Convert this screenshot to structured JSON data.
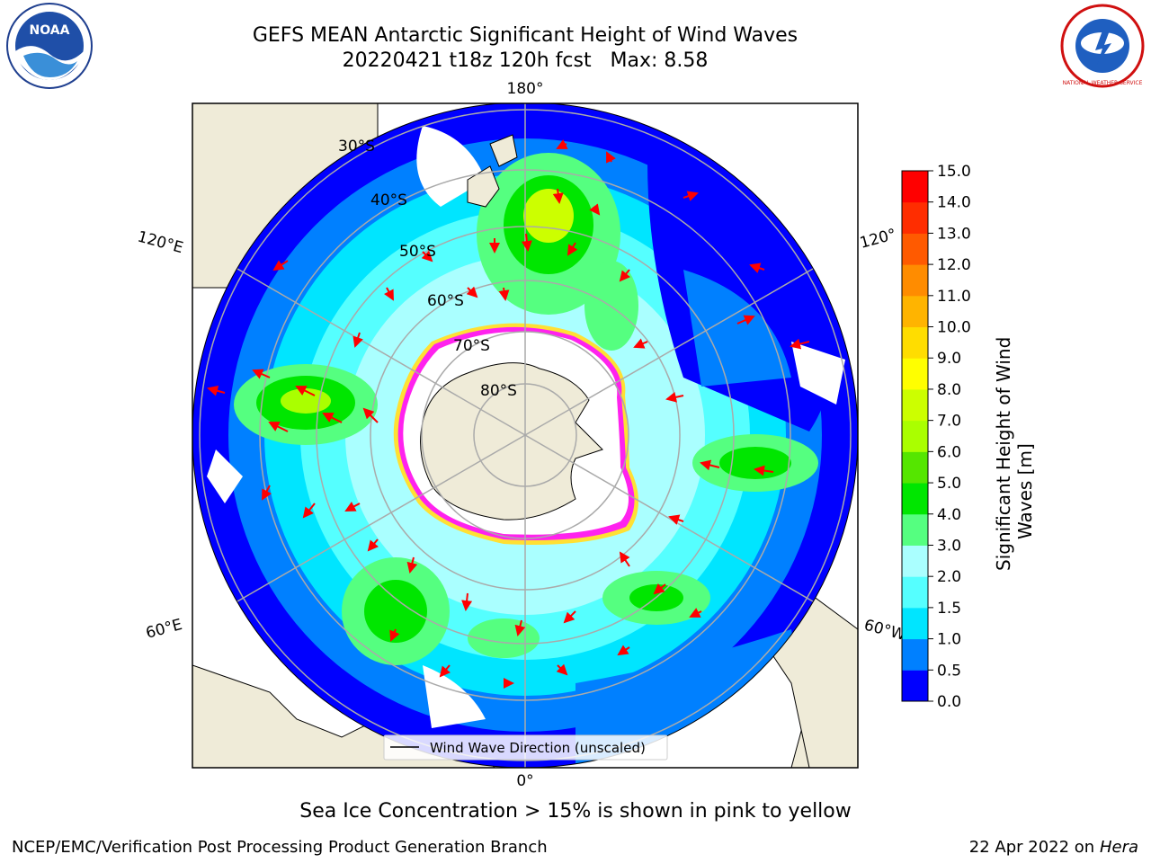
{
  "header": {
    "title": "GEFS MEAN Antarctic Significant Height of Wind Waves",
    "subtitle": "20220421 t18z 120h fcst   Max: 8.58"
  },
  "logos": {
    "left_icon": "noaa-logo",
    "right_icon": "national-weather-service-logo",
    "left_text": "NOAA",
    "right_text": "NATIONAL WEATHER SERVICE"
  },
  "map": {
    "projection": "south-polar-stereographic",
    "longitude_labels": {
      "top": "180°",
      "upper_left": "120°E",
      "upper_right": "120°",
      "lower_left": "60°E",
      "lower_right": "60°W",
      "bottom": "0°"
    },
    "latitude_labels": [
      "30°S",
      "40°S",
      "50°S",
      "60°S",
      "70°S",
      "80°S"
    ],
    "legend": "Wind Wave Direction (unscaled)",
    "arrow_color": "#ff0000",
    "land_color": "#efebd8",
    "ice_colors": [
      "#ff22ee",
      "#ffe033"
    ]
  },
  "colorbar": {
    "label_line1": "Significant Height of Wind",
    "label_line2": "Waves [m]",
    "ticks": [
      "0.0",
      "0.5",
      "1.0",
      "1.5",
      "2.0",
      "3.0",
      "4.0",
      "5.0",
      "6.0",
      "7.0",
      "8.0",
      "9.0",
      "10.0",
      "11.0",
      "12.0",
      "13.0",
      "14.0",
      "15.0"
    ],
    "colors": [
      "#0000ff",
      "#0080ff",
      "#00e5ff",
      "#55ffff",
      "#aaffff",
      "#55ff80",
      "#00e600",
      "#55e600",
      "#aaff00",
      "#ccff00",
      "#ffff00",
      "#ffdd00",
      "#ffb400",
      "#ff8c00",
      "#ff5a00",
      "#ff2d00",
      "#ff0000"
    ]
  },
  "footer": {
    "note": "Sea Ice Concentration > 15% is shown in pink to yellow",
    "left": "NCEP/EMC/Verification Post Processing Product Generation Branch",
    "right_date": "22 Apr 2022 on ",
    "right_host": "Hera"
  }
}
